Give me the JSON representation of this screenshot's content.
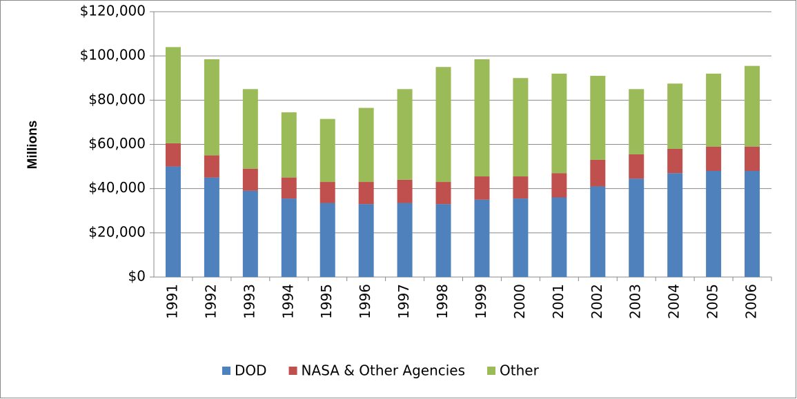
{
  "chart_data": {
    "type": "stacked_bar",
    "y_label": "Millions",
    "categories": [
      "1991",
      "1992",
      "1993",
      "1994",
      "1995",
      "1996",
      "1997",
      "1998",
      "1999",
      "2000",
      "2001",
      "2002",
      "2003",
      "2004",
      "2005",
      "2006"
    ],
    "series": [
      {
        "name": "DOD",
        "color": "#4f81bd",
        "values": [
          50000,
          45000,
          39000,
          35500,
          33500,
          33000,
          33500,
          33000,
          35000,
          35500,
          36000,
          41000,
          44500,
          47000,
          48000,
          48000
        ]
      },
      {
        "name": "NASA & Other Agencies",
        "color": "#c0504d",
        "values": [
          10500,
          10000,
          10000,
          9500,
          9500,
          10000,
          10500,
          10000,
          10500,
          10000,
          11000,
          12000,
          11000,
          11000,
          11000,
          11000
        ]
      },
      {
        "name": "Other",
        "color": "#9bbb59",
        "values": [
          43500,
          43500,
          36000,
          29500,
          28500,
          33500,
          41000,
          52000,
          53000,
          44500,
          45000,
          38000,
          29500,
          29500,
          33000,
          36500
        ]
      }
    ],
    "ylim": [
      0,
      120000
    ],
    "yticks": [
      {
        "value": 0,
        "label": "$0"
      },
      {
        "value": 20000,
        "label": "$20,000"
      },
      {
        "value": 40000,
        "label": "$40,000"
      },
      {
        "value": 60000,
        "label": "$60,000"
      },
      {
        "value": 80000,
        "label": "$80,000"
      },
      {
        "value": 100000,
        "label": "$100,000"
      },
      {
        "value": 120000,
        "label": "$120,000"
      }
    ],
    "grid": true,
    "legend": "bottom"
  }
}
